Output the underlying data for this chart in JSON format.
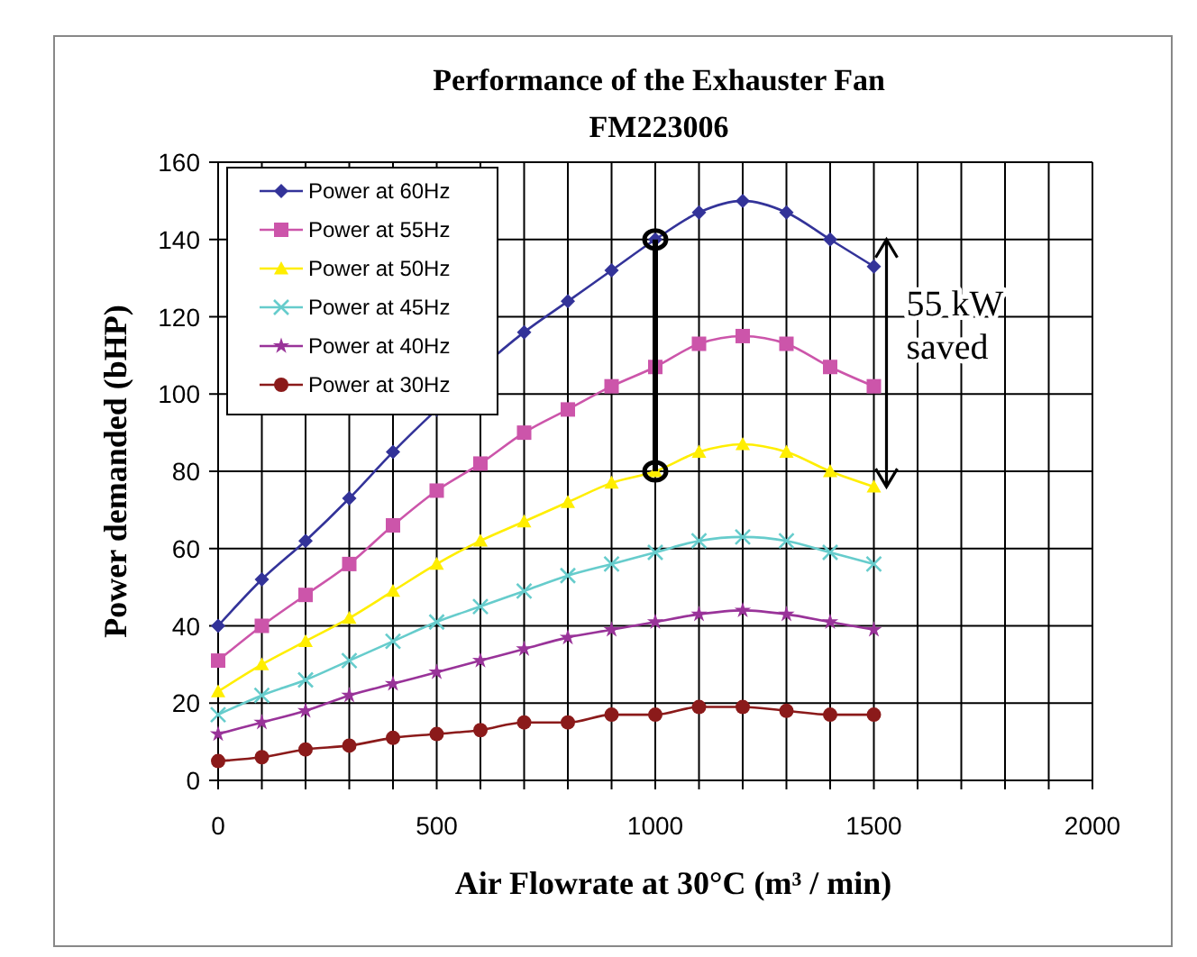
{
  "chart_data": {
    "type": "line",
    "title": "Performance of the Exhauster Fan",
    "subtitle": "FM223006",
    "xlabel": "Air Flowrate at 30°C (m³ / min)",
    "ylabel": "Power demanded (bHP)",
    "x": [
      0,
      100,
      200,
      300,
      400,
      500,
      600,
      700,
      800,
      900,
      1000,
      1100,
      1200,
      1300,
      1400,
      1500
    ],
    "series": [
      {
        "name": "Power at 60Hz",
        "color": "#333399",
        "marker": "diamond",
        "values": [
          40,
          52,
          62,
          73,
          85,
          96,
          null,
          116,
          124,
          132,
          140,
          147,
          150,
          147,
          140,
          133
        ]
      },
      {
        "name": "Power at 55Hz",
        "color": "#cc55aa",
        "marker": "square",
        "values": [
          31,
          40,
          48,
          56,
          66,
          75,
          82,
          90,
          96,
          102,
          107,
          113,
          115,
          113,
          107,
          102
        ]
      },
      {
        "name": "Power at 50Hz",
        "color": "#ffee00",
        "marker": "triangle",
        "values": [
          23,
          30,
          36,
          42,
          49,
          56,
          62,
          67,
          72,
          77,
          80,
          85,
          87,
          85,
          80,
          76
        ]
      },
      {
        "name": "Power at 45Hz",
        "color": "#66cccc",
        "marker": "cross",
        "values": [
          17,
          22,
          26,
          31,
          36,
          41,
          45,
          49,
          53,
          56,
          59,
          62,
          63,
          62,
          59,
          56
        ]
      },
      {
        "name": "Power at 40Hz",
        "color": "#993399",
        "marker": "star",
        "values": [
          12,
          15,
          18,
          22,
          25,
          28,
          31,
          34,
          37,
          39,
          41,
          43,
          44,
          43,
          41,
          39
        ]
      },
      {
        "name": "Power at 30Hz",
        "color": "#8b1a1a",
        "marker": "circle",
        "values": [
          5,
          6,
          8,
          9,
          11,
          12,
          13,
          15,
          15,
          17,
          17,
          19,
          19,
          18,
          17,
          17
        ]
      }
    ],
    "xlim": [
      0,
      2000
    ],
    "xticks": [
      0,
      {
        "value": 100,
        "label": null
      },
      {
        "value": 200,
        "label": null
      },
      {
        "value": 300,
        "label": null
      },
      {
        "value": 400,
        "label": null
      },
      500,
      {
        "value": 600,
        "label": null
      },
      {
        "value": 700,
        "label": null
      },
      {
        "value": 800,
        "label": null
      },
      {
        "value": 900,
        "label": null
      },
      1000,
      {
        "value": 1100,
        "label": null
      },
      {
        "value": 1200,
        "label": null
      },
      {
        "value": 1300,
        "label": null
      },
      {
        "value": 1400,
        "label": null
      },
      1500,
      {
        "value": 1600,
        "label": null
      },
      {
        "value": 1700,
        "label": null
      },
      {
        "value": 1800,
        "label": null
      },
      {
        "value": 1900,
        "label": null
      },
      2000
    ],
    "ylim": [
      0,
      160
    ],
    "yticks": [
      0,
      20,
      40,
      60,
      80,
      100,
      120,
      140,
      160
    ],
    "grid": true,
    "legend": "top left",
    "annotations": [
      "55 kW\nsaved"
    ]
  }
}
